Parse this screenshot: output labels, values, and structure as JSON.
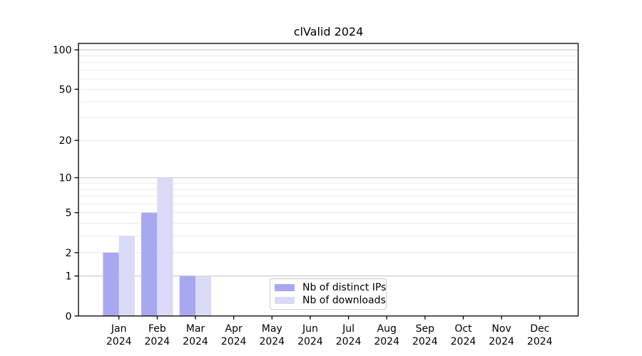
{
  "chart_data": {
    "type": "bar",
    "title": "clValid 2024",
    "categories": [
      "Jan 2024",
      "Feb 2024",
      "Mar 2024",
      "Apr 2024",
      "May 2024",
      "Jun 2024",
      "Jul 2024",
      "Aug 2024",
      "Sep 2024",
      "Oct 2024",
      "Nov 2024",
      "Dec 2024"
    ],
    "series": [
      {
        "name": "Nb of distinct IPs",
        "color": "#a8a8f0",
        "values": [
          2,
          5,
          1,
          0,
          0,
          0,
          0,
          0,
          0,
          0,
          0,
          0
        ]
      },
      {
        "name": "Nb of downloads",
        "color": "#dadaf8",
        "values": [
          3,
          10,
          1,
          0,
          0,
          0,
          0,
          0,
          0,
          0,
          0,
          0
        ]
      }
    ],
    "xlabel": "",
    "ylabel": "",
    "y_scale": "log1p",
    "ylim": [
      0,
      112
    ],
    "y_ticks_labeled": [
      0,
      1,
      2,
      5,
      10,
      20,
      50,
      100
    ],
    "y_gridlines_major": [
      1,
      10,
      100
    ],
    "y_gridlines_minor": [
      2,
      3,
      4,
      5,
      6,
      7,
      8,
      9,
      20,
      30,
      40,
      50,
      60,
      70,
      80,
      90
    ],
    "grid": "on",
    "legend_position": "inside-bottom-center"
  },
  "colors": {
    "grid_major": "#c3c3c3",
    "grid_minor": "#eaeaea",
    "axis": "#000000",
    "text": "#000000",
    "background": "#ffffff",
    "legend_border": "#cccccc"
  }
}
